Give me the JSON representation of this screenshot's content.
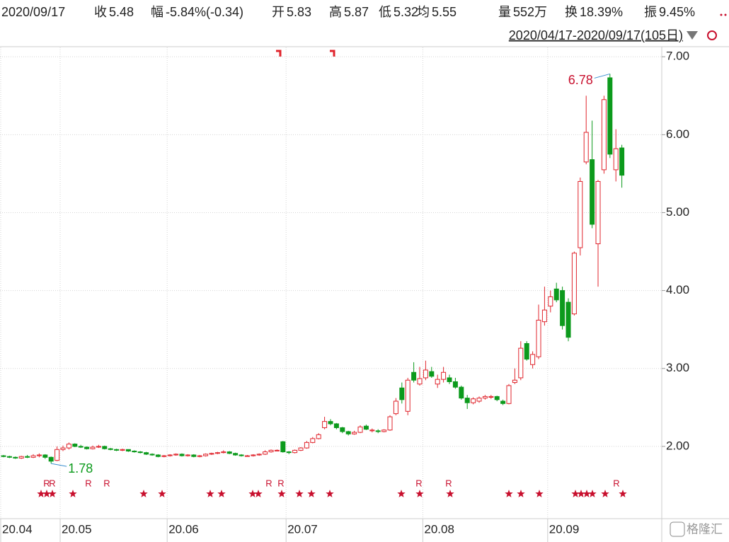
{
  "header": {
    "date": "2020/09/17",
    "items": [
      {
        "label": "收",
        "value": "5.48",
        "tone": "down"
      },
      {
        "label": "幅",
        "value": "-5.84%(-0.34)",
        "tone": "down"
      },
      {
        "label": "开",
        "value": "5.83",
        "tone": "up"
      },
      {
        "label": "高",
        "value": "5.87",
        "tone": "up"
      },
      {
        "label": "低",
        "value": "5.32",
        "tone": "down"
      },
      {
        "label": "均",
        "value": "5.55",
        "tone": "down"
      },
      {
        "label": "量",
        "value": "552万",
        "tone": "plain"
      },
      {
        "label": "换",
        "value": "18.39%",
        "tone": "plain"
      },
      {
        "label": "振",
        "value": "9.45%",
        "tone": "plain"
      }
    ],
    "range": "2020/04/17-2020/09/17(105日)"
  },
  "event_marker": "R",
  "watermark": "格隆汇",
  "chart_data": {
    "type": "candlestick",
    "up_color": "#e0242c",
    "down_color": "#0c9a1c",
    "grid": true,
    "categories": [
      "20.04",
      null,
      null,
      null,
      null,
      null,
      null,
      null,
      null,
      null,
      "20.05",
      null,
      null,
      null,
      null,
      null,
      null,
      null,
      null,
      null,
      null,
      null,
      null,
      null,
      null,
      null,
      null,
      null,
      "20.06",
      null,
      null,
      null,
      null,
      null,
      null,
      null,
      null,
      null,
      null,
      null,
      null,
      null,
      null,
      null,
      null,
      null,
      null,
      null,
      "20.07",
      null,
      null,
      null,
      null,
      null,
      null,
      null,
      null,
      null,
      null,
      null,
      null,
      null,
      null,
      null,
      null,
      null,
      null,
      null,
      null,
      null,
      null,
      "20.08",
      null,
      null,
      null,
      null,
      null,
      null,
      null,
      null,
      null,
      null,
      null,
      null,
      null,
      null,
      null,
      null,
      null,
      null,
      null,
      null,
      "20.09",
      null,
      null,
      null,
      null,
      null,
      null,
      null,
      null,
      null,
      null,
      null,
      null
    ],
    "open": [
      1.88,
      1.87,
      1.86,
      1.85,
      1.87,
      1.86,
      1.88,
      1.89,
      1.86,
      1.82,
      1.96,
      1.98,
      2.03,
      2.0,
      1.99,
      1.97,
      1.99,
      2.0,
      1.97,
      1.96,
      1.95,
      1.96,
      1.94,
      1.93,
      1.92,
      1.9,
      1.89,
      1.87,
      1.88,
      1.89,
      1.9,
      1.88,
      1.89,
      1.87,
      1.88,
      1.9,
      1.91,
      1.92,
      1.93,
      1.91,
      1.89,
      1.88,
      1.88,
      1.89,
      1.9,
      1.93,
      1.95,
      2.06,
      1.93,
      1.92,
      1.95,
      1.98,
      2.05,
      2.1,
      2.24,
      2.32,
      2.29,
      2.24,
      2.19,
      2.16,
      2.18,
      2.26,
      2.2,
      2.2,
      2.19,
      2.21,
      2.42,
      2.75,
      2.45,
      2.95,
      2.8,
      2.88,
      2.96,
      2.8,
      2.86,
      2.88,
      2.83,
      2.76,
      2.62,
      2.56,
      2.58,
      2.62,
      2.63,
      2.64,
      2.58,
      2.55,
      2.82,
      2.88,
      3.32,
      3.05,
      3.15,
      3.6,
      3.8,
      4.02,
      4.0,
      3.85,
      3.7,
      4.55,
      5.65,
      5.68,
      4.6,
      5.55,
      6.73,
      5.55,
      5.83
    ],
    "high": [
      1.89,
      1.88,
      1.87,
      1.88,
      1.89,
      1.9,
      1.91,
      1.9,
      1.87,
      2.0,
      2.01,
      2.05,
      2.04,
      2.02,
      2.0,
      2.01,
      2.02,
      2.01,
      1.98,
      1.97,
      1.97,
      1.96,
      1.95,
      1.94,
      1.93,
      1.91,
      1.9,
      1.89,
      1.9,
      1.91,
      1.91,
      1.9,
      1.9,
      1.89,
      1.91,
      1.92,
      1.93,
      1.95,
      1.94,
      1.92,
      1.9,
      1.89,
      1.9,
      1.91,
      1.95,
      1.96,
      1.96,
      2.07,
      1.94,
      1.96,
      1.99,
      2.07,
      2.12,
      2.17,
      2.38,
      2.35,
      2.3,
      2.25,
      2.2,
      2.2,
      2.27,
      2.28,
      2.23,
      2.22,
      2.22,
      2.4,
      2.62,
      2.82,
      2.88,
      3.08,
      3.02,
      3.1,
      3.02,
      2.92,
      3.02,
      2.92,
      2.88,
      2.78,
      2.66,
      2.63,
      2.64,
      2.66,
      2.66,
      2.65,
      2.6,
      2.8,
      3.0,
      3.35,
      3.35,
      3.22,
      3.82,
      4.05,
      4.0,
      4.1,
      4.05,
      3.9,
      4.5,
      5.45,
      6.5,
      6.18,
      5.42,
      6.5,
      6.78,
      6.07,
      5.87
    ],
    "low": [
      1.86,
      1.85,
      1.84,
      1.84,
      1.85,
      1.85,
      1.86,
      1.84,
      1.78,
      1.81,
      1.94,
      1.96,
      1.99,
      1.98,
      1.96,
      1.96,
      1.98,
      1.96,
      1.95,
      1.94,
      1.94,
      1.93,
      1.92,
      1.91,
      1.89,
      1.88,
      1.86,
      1.86,
      1.87,
      1.88,
      1.87,
      1.87,
      1.86,
      1.86,
      1.87,
      1.89,
      1.9,
      1.91,
      1.9,
      1.88,
      1.87,
      1.87,
      1.87,
      1.88,
      1.89,
      1.92,
      1.94,
      1.92,
      1.9,
      1.91,
      1.94,
      1.97,
      2.04,
      2.09,
      2.22,
      2.27,
      2.22,
      2.17,
      2.14,
      2.15,
      2.17,
      2.21,
      2.18,
      2.17,
      2.18,
      2.2,
      2.4,
      2.55,
      2.4,
      2.82,
      2.78,
      2.85,
      2.88,
      2.75,
      2.82,
      2.8,
      2.74,
      2.6,
      2.48,
      2.54,
      2.56,
      2.6,
      2.61,
      2.58,
      2.53,
      2.54,
      2.8,
      2.85,
      3.1,
      3.0,
      3.12,
      3.55,
      3.72,
      3.85,
      3.5,
      3.35,
      3.68,
      4.45,
      5.62,
      4.8,
      4.05,
      5.5,
      5.7,
      5.4,
      5.32
    ],
    "close": [
      1.87,
      1.86,
      1.85,
      1.87,
      1.86,
      1.88,
      1.89,
      1.86,
      1.81,
      1.96,
      1.98,
      2.03,
      2.0,
      1.99,
      1.97,
      1.99,
      2.0,
      1.97,
      1.96,
      1.95,
      1.96,
      1.94,
      1.93,
      1.92,
      1.9,
      1.89,
      1.87,
      1.88,
      1.89,
      1.9,
      1.88,
      1.89,
      1.87,
      1.88,
      1.9,
      1.91,
      1.92,
      1.93,
      1.91,
      1.89,
      1.88,
      1.88,
      1.89,
      1.9,
      1.93,
      1.95,
      1.95,
      1.93,
      1.92,
      1.95,
      1.98,
      2.05,
      2.1,
      2.15,
      2.32,
      2.29,
      2.24,
      2.19,
      2.16,
      2.18,
      2.25,
      2.22,
      2.21,
      2.19,
      2.21,
      2.38,
      2.58,
      2.6,
      2.85,
      2.85,
      2.87,
      2.98,
      2.9,
      2.86,
      2.95,
      2.83,
      2.76,
      2.62,
      2.56,
      2.61,
      2.62,
      2.64,
      2.64,
      2.6,
      2.55,
      2.78,
      2.85,
      3.26,
      3.12,
      3.18,
      3.62,
      3.75,
      3.92,
      3.88,
      3.55,
      3.4,
      4.48,
      5.4,
      6.03,
      4.85,
      5.4,
      6.45,
      5.75,
      5.82,
      5.48
    ],
    "annotations": [
      {
        "label": "6.78",
        "value": 6.78,
        "color": "#c8102e"
      },
      {
        "label": "1.78",
        "value": 1.78,
        "color": "#0c9a1c"
      }
    ],
    "ylim": [
      1.1,
      7.12
    ],
    "yticks": [
      {
        "value": 2,
        "label": "2.00"
      },
      {
        "value": 3,
        "label": "3.00"
      },
      {
        "value": 4,
        "label": "4.00"
      },
      {
        "value": 5,
        "label": "5.00"
      },
      {
        "value": 6,
        "label": "6.00"
      },
      {
        "value": 7,
        "label": "7.00"
      }
    ]
  }
}
